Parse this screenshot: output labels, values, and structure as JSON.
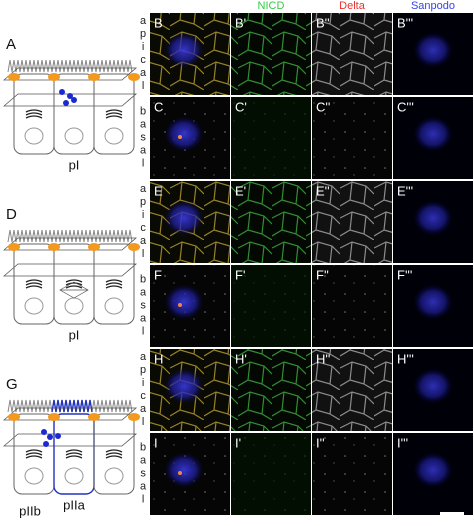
{
  "columns": [
    "NICD",
    "Delta",
    "Sanpodo"
  ],
  "schematics": [
    {
      "label": "A",
      "cells": [
        "pI"
      ]
    },
    {
      "label": "D",
      "cells": [
        "pI"
      ]
    },
    {
      "label": "G",
      "cells": [
        "pIIb",
        "pIIa"
      ]
    }
  ],
  "rows": [
    {
      "side": "apical",
      "panels": [
        "B",
        "B'",
        "B''",
        "B'''"
      ]
    },
    {
      "side": "basal",
      "panels": [
        "C",
        "C'",
        "C''",
        "C'''"
      ]
    },
    {
      "side": "apical",
      "panels": [
        "E",
        "E'",
        "E''",
        "E'''"
      ]
    },
    {
      "side": "basal",
      "panels": [
        "F",
        "F'",
        "F''",
        "F'''"
      ]
    },
    {
      "side": "apical",
      "panels": [
        "H",
        "H'",
        "H''",
        "H'''"
      ]
    },
    {
      "side": "basal",
      "panels": [
        "I",
        "I'",
        "I''",
        "I'''"
      ]
    }
  ]
}
